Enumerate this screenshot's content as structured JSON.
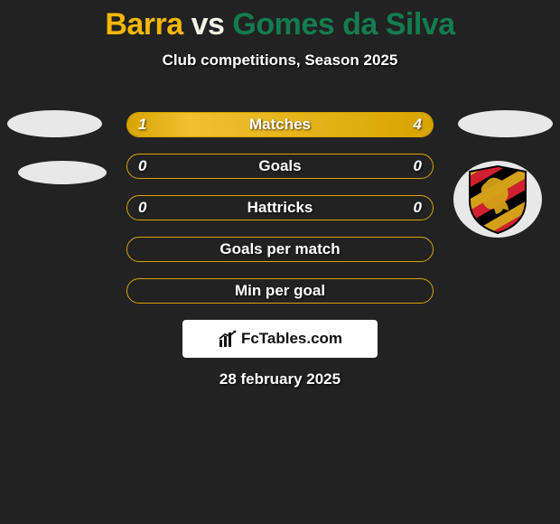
{
  "header": {
    "player1": "Barra",
    "vs_text": "vs",
    "player2": "Gomes da Silva",
    "player1_color": "#f5b800",
    "vs_color": "#f3f3e8",
    "player2_color": "#137d4e",
    "subtitle": "Club competitions, Season 2025"
  },
  "stats": [
    {
      "label": "Matches",
      "left_val": "1",
      "right_val": "4",
      "left_pct": 20,
      "right_pct": 80
    },
    {
      "label": "Goals",
      "left_val": "0",
      "right_val": "0",
      "left_pct": 0,
      "right_pct": 0
    },
    {
      "label": "Hattricks",
      "left_val": "0",
      "right_val": "0",
      "left_pct": 0,
      "right_pct": 0
    },
    {
      "label": "Goals per match",
      "left_val": "",
      "right_val": "",
      "left_pct": 0,
      "right_pct": 0
    },
    {
      "label": "Min per goal",
      "left_val": "",
      "right_val": "",
      "left_pct": 0,
      "right_pct": 0
    }
  ],
  "style": {
    "background": "#222222",
    "bar_border_color": "#d9a400",
    "bar_fill_start": "#d9a400",
    "bar_fill_end": "#f0c030",
    "text_color": "#ffffff"
  },
  "shield": {
    "stripe_colors": [
      "#000000",
      "#d4a018",
      "#d02030"
    ],
    "lion_color": "#d4a018"
  },
  "logo": {
    "text": "FcTables.com"
  },
  "date": "28 february 2025"
}
